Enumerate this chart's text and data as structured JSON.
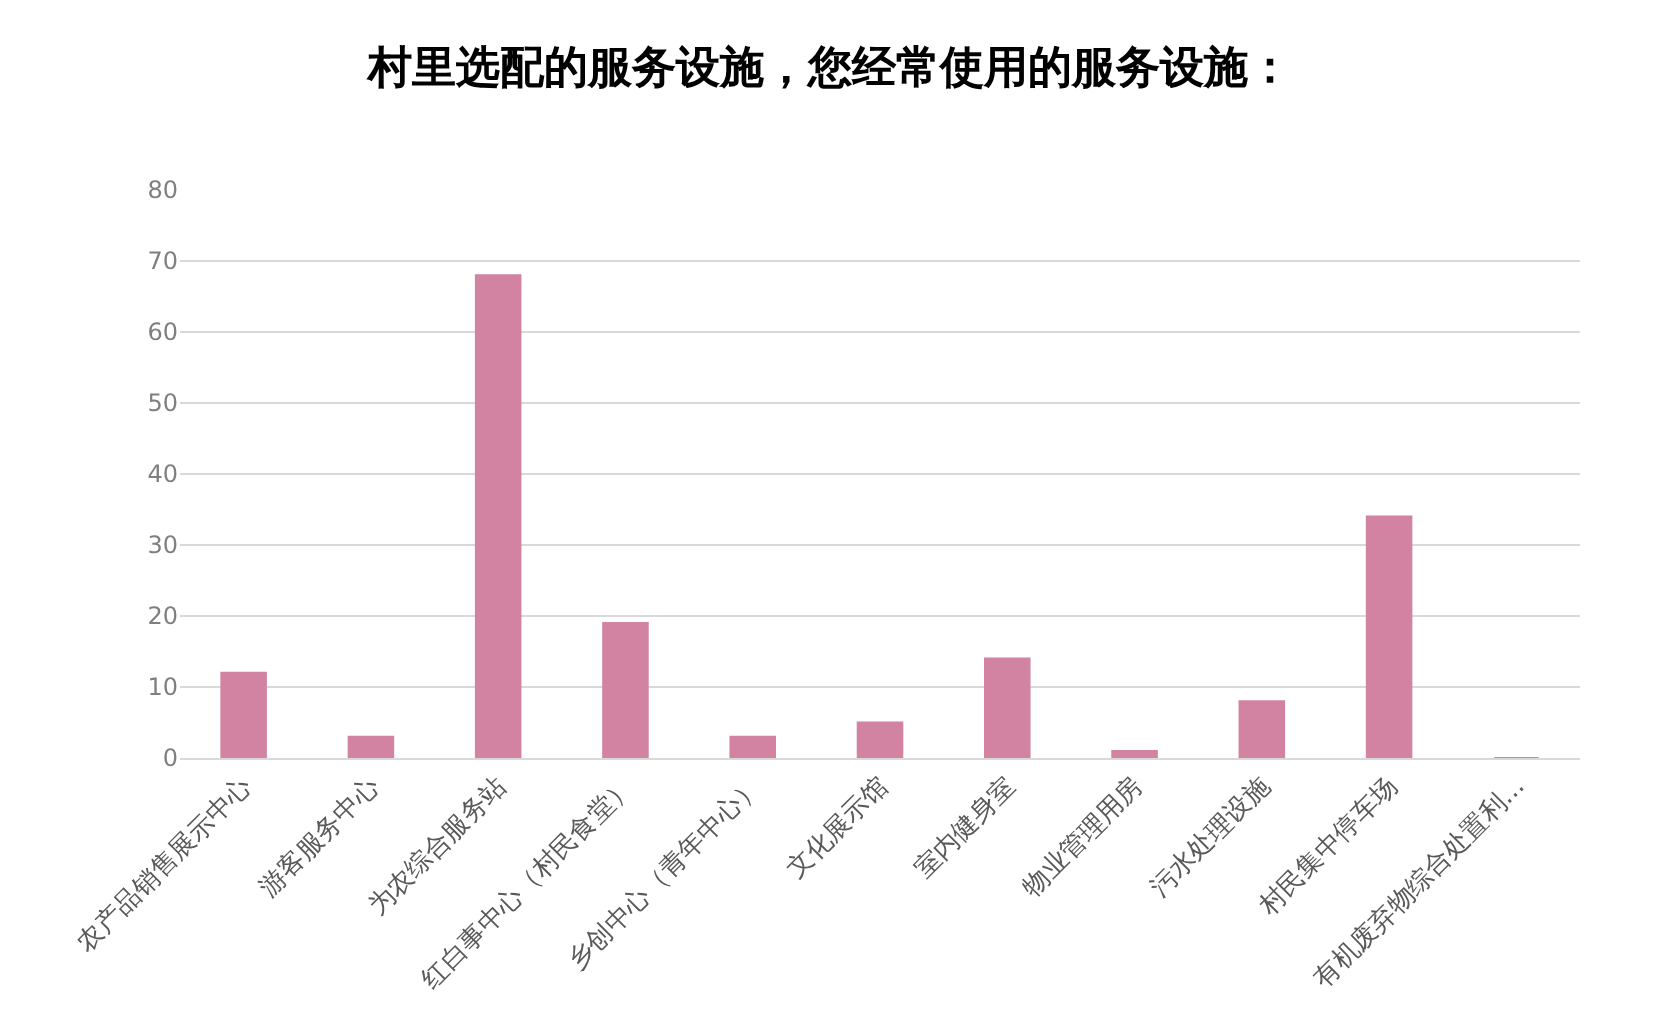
{
  "chart_data": {
    "type": "bar",
    "title": "村里选配的服务设施，您经常使用的服务设施：",
    "categories": [
      "农产品销售展示中心",
      "游客服务中心",
      "为农综合服务站",
      "红白事中心（村民食堂）",
      "乡创中心（青年中心）",
      "文化展示馆",
      "室内健身室",
      "物业管理用房",
      "污水处理设施",
      "村民集中停车场",
      "有机废弃物综合处置利..."
    ],
    "values": [
      12,
      3,
      68,
      19,
      3,
      5,
      14,
      1,
      8,
      34,
      0
    ],
    "color": "#d283a2",
    "ylim": [
      0,
      80
    ],
    "yticks": [
      0,
      10,
      20,
      30,
      40,
      50,
      60,
      70,
      80
    ],
    "grid": "y"
  }
}
